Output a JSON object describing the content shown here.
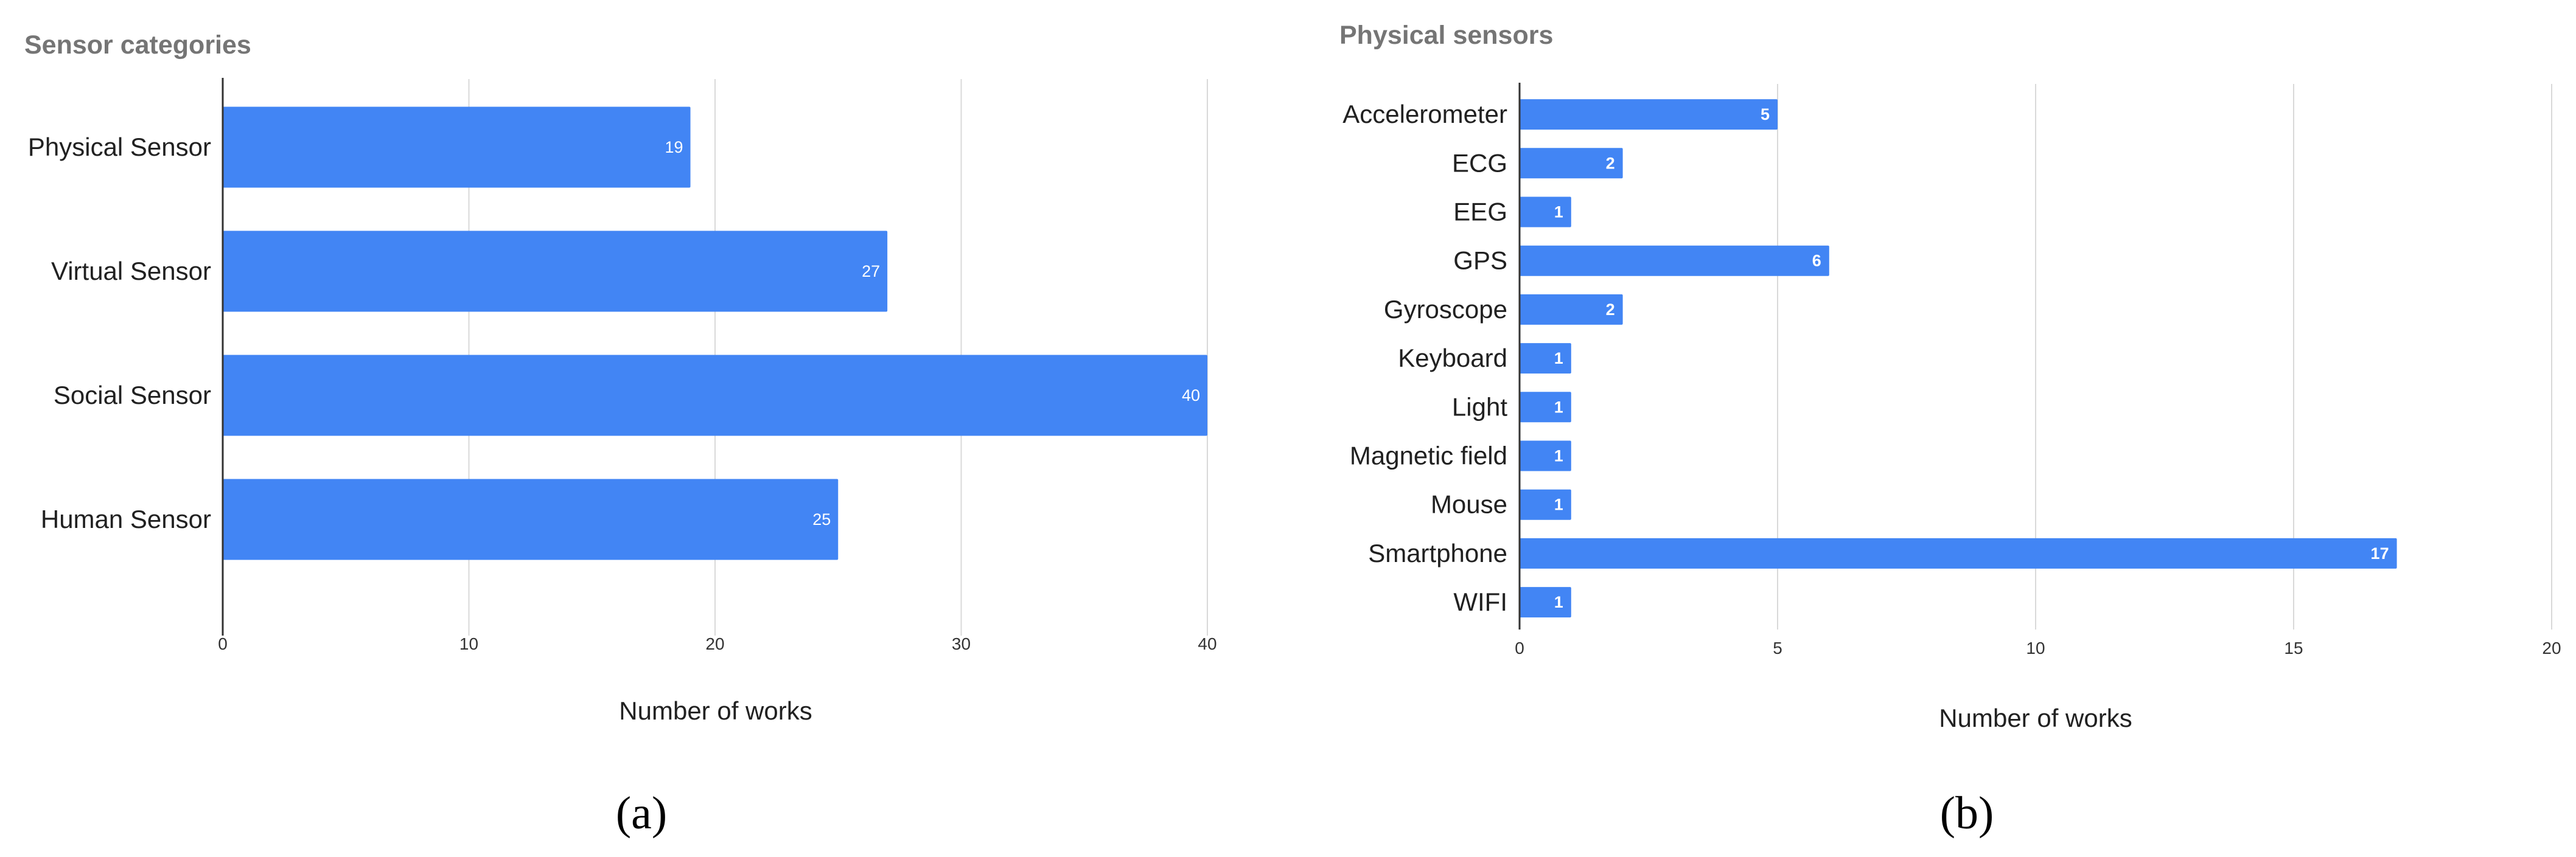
{
  "colors": {
    "bar": "#4285f4",
    "grid": "#d9d9d9",
    "axis": "#333333",
    "title": "#757575"
  },
  "chart_data": [
    {
      "type": "bar",
      "orientation": "horizontal",
      "title": "Sensor categories",
      "categories": [
        "Physical Sensor",
        "Virtual Sensor",
        "Social Sensor",
        "Human Sensor"
      ],
      "values": [
        19,
        27,
        40,
        25
      ],
      "xlabel": "Number of works",
      "ylabel": "",
      "xlim": [
        0,
        42
      ],
      "xticks": [
        0,
        10,
        20,
        30,
        40
      ],
      "grid": true,
      "legend": "none",
      "panel_label": "(a)"
    },
    {
      "type": "bar",
      "orientation": "horizontal",
      "title": "Physical sensors",
      "categories": [
        "Accelerometer",
        "ECG",
        "EEG",
        "GPS",
        "Gyroscope",
        "Keyboard",
        "Light",
        "Magnetic field",
        "Mouse",
        "Smartphone",
        "WIFI"
      ],
      "values": [
        5,
        2,
        1,
        6,
        2,
        1,
        1,
        1,
        1,
        17,
        1
      ],
      "xlabel": "Number of works",
      "ylabel": "",
      "xlim": [
        0,
        20
      ],
      "xticks": [
        0,
        5,
        10,
        15,
        20
      ],
      "grid": true,
      "legend": "none",
      "panel_label": "(b)"
    }
  ]
}
